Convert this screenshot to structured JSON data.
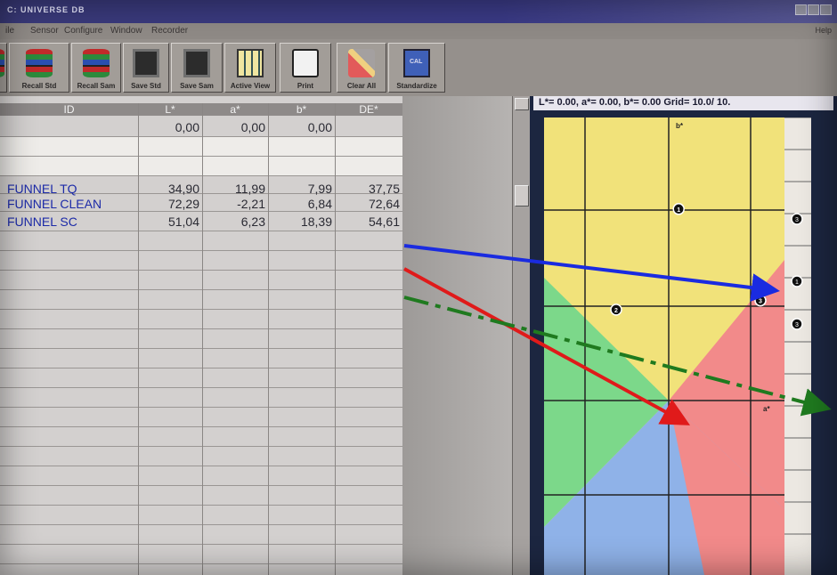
{
  "window": {
    "title": "C: UNIVERSE  DB"
  },
  "menu": {
    "items": [
      "ile",
      "Sensor",
      "Configure",
      "Window",
      "Recorder"
    ],
    "help": "Help"
  },
  "toolbar": {
    "buttons": [
      {
        "label": "n",
        "icon": "database-icon"
      },
      {
        "label": "Recall Std",
        "icon": "database-icon"
      },
      {
        "label": "Recall Sam",
        "icon": "database-icon"
      },
      {
        "label": "Save Std",
        "icon": "box-icon"
      },
      {
        "label": "Save Sam",
        "icon": "box-icon"
      },
      {
        "label": "Active View",
        "icon": "view-icon"
      },
      {
        "label": "Print",
        "icon": "printer-icon"
      },
      {
        "label": "Clear All",
        "icon": "eraser-icon"
      },
      {
        "label": "Standardize",
        "icon": "calibrate-icon"
      }
    ]
  },
  "grid": {
    "columns": [
      "ID",
      "L*",
      "a*",
      "b*",
      "DE*"
    ],
    "rows": [
      {
        "id": "",
        "L": "0,00",
        "a": "0,00",
        "b": "0,00",
        "DE": ""
      },
      {
        "id": "",
        "L": "",
        "a": "",
        "b": "",
        "DE": ""
      },
      {
        "id": "",
        "L": "",
        "a": "",
        "b": "",
        "DE": ""
      },
      {
        "id": "FUNNEL TQ",
        "L": "34,90",
        "a": "11,99",
        "b": "7,99",
        "DE": "37,75"
      },
      {
        "id": "FUNNEL CLEAN",
        "L": "72,29",
        "a": "-2,21",
        "b": "6,84",
        "DE": "72,64"
      },
      {
        "id": "FUNNEL SC",
        "L": "51,04",
        "a": "6,23",
        "b": "18,39",
        "DE": "54,61"
      }
    ]
  },
  "map": {
    "header": "L*=  0.00, a*=  0.00, b*=  0.00  Grid= 10.0/ 10.",
    "axis_b": "b*",
    "axis_a": "a*",
    "points": [
      {
        "label": "1",
        "a_frac": 0.56,
        "b_frac": 0.2
      },
      {
        "label": "2",
        "a_frac": 0.3,
        "b_frac": 0.42
      },
      {
        "label": "3",
        "a_frac": 0.9,
        "b_frac": 0.4
      }
    ],
    "colors": {
      "yellow": "#f1e27a",
      "red": "#f28a8a",
      "green": "#7cd88a",
      "blue": "#8fb2e8"
    }
  },
  "annotations": {
    "arrow_colors": [
      "#1a2be0",
      "#e01a1a",
      "#1f7a1f"
    ]
  }
}
